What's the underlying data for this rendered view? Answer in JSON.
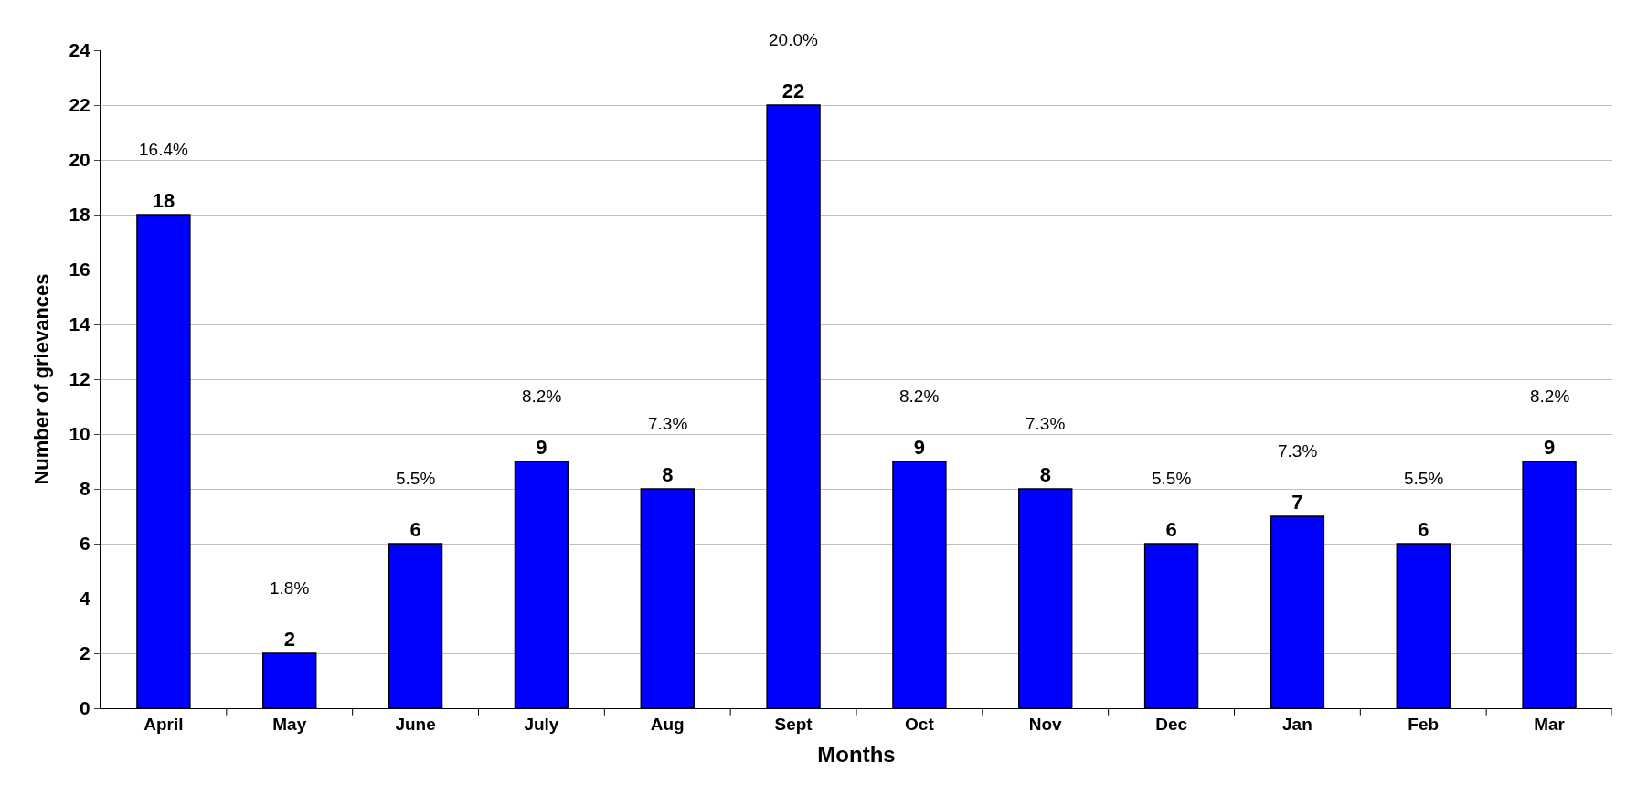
{
  "chart_data": {
    "type": "bar",
    "xlabel": "Months",
    "ylabel": "Number of grievances",
    "categories": [
      "April",
      "May",
      "June",
      "July",
      "Aug",
      "Sept",
      "Oct",
      "Nov",
      "Dec",
      "Jan",
      "Feb",
      "Mar"
    ],
    "values": [
      18,
      2,
      6,
      9,
      8,
      22,
      9,
      8,
      6,
      7,
      6,
      9
    ],
    "color": "#0000ff",
    "ylim": [
      0,
      24
    ],
    "yticks": [
      0,
      2,
      4,
      6,
      8,
      10,
      12,
      14,
      16,
      18,
      20,
      22,
      24
    ],
    "grid": "y",
    "data_labels": true,
    "annotations": [
      "16.4%",
      "1.8%",
      "5.5%",
      "8.2%",
      "7.3%",
      "20.0%",
      "8.2%",
      "7.3%",
      "5.5%",
      "7.3%",
      "5.5%",
      "8.2%"
    ]
  }
}
